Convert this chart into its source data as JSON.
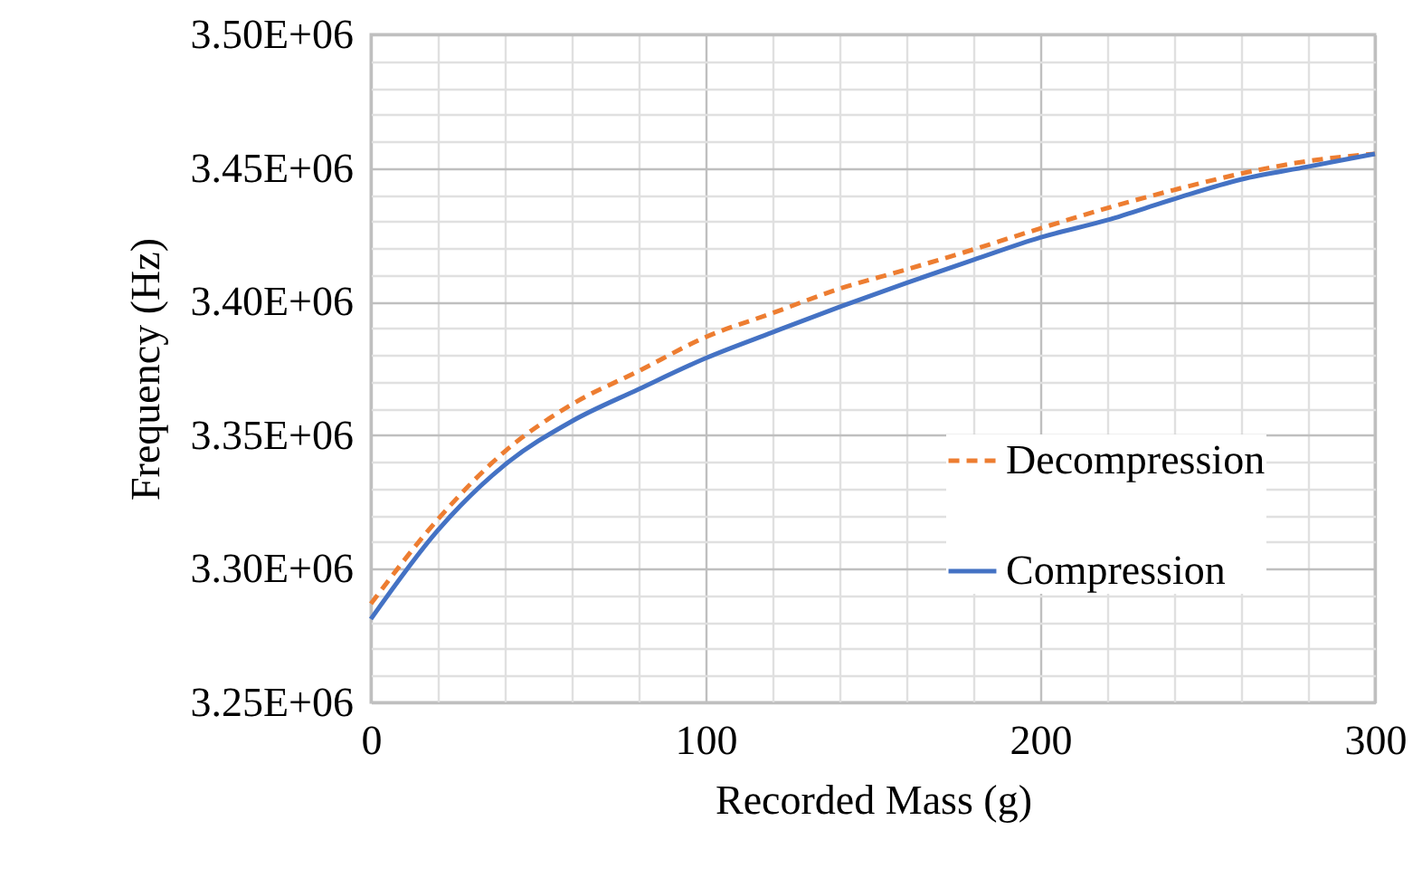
{
  "chart_data": {
    "type": "line",
    "xlabel": "Recorded Mass (g)",
    "ylabel": "Frequency (Hz)",
    "x": [
      0,
      20,
      40,
      60,
      80,
      100,
      120,
      140,
      160,
      180,
      200,
      220,
      240,
      260,
      280,
      300
    ],
    "series": [
      {
        "name": "Decompression",
        "color": "#ed7d31",
        "line_style": "dashed",
        "values": [
          3286900,
          3318500,
          3343900,
          3361500,
          3374000,
          3386700,
          3395700,
          3404800,
          3412000,
          3419500,
          3427400,
          3435000,
          3441800,
          3447900,
          3452600,
          3455300
        ]
      },
      {
        "name": "Compression",
        "color": "#4472c4",
        "line_style": "solid",
        "values": [
          3281200,
          3314400,
          3338900,
          3355200,
          3367200,
          3378800,
          3388500,
          3398000,
          3407000,
          3415600,
          3424000,
          3430500,
          3438400,
          3445700,
          3450500,
          3455300
        ]
      }
    ],
    "xlim": [
      0,
      300
    ],
    "xticks": [
      0,
      {
        "value": 20,
        "label": null
      },
      {
        "value": 40,
        "label": null
      },
      {
        "value": 60,
        "label": null
      },
      {
        "value": 80,
        "label": null
      },
      100,
      {
        "value": 120,
        "label": null
      },
      {
        "value": 140,
        "label": null
      },
      {
        "value": 160,
        "label": null
      },
      {
        "value": 180,
        "label": null
      },
      200,
      {
        "value": 220,
        "label": null
      },
      {
        "value": 240,
        "label": null
      },
      {
        "value": 260,
        "label": null
      },
      {
        "value": 280,
        "label": null
      },
      300
    ],
    "ylim": [
      3250000,
      3500000
    ],
    "yticks": [
      {
        "value": 3250000,
        "label": "3.25E+06"
      },
      {
        "value": 3260000,
        "label": null
      },
      {
        "value": 3270000,
        "label": null
      },
      {
        "value": 3280000,
        "label": null
      },
      {
        "value": 3290000,
        "label": null
      },
      {
        "value": 3300000,
        "label": "3.30E+06"
      },
      {
        "value": 3310000,
        "label": null
      },
      {
        "value": 3320000,
        "label": null
      },
      {
        "value": 3330000,
        "label": null
      },
      {
        "value": 3340000,
        "label": null
      },
      {
        "value": 3350000,
        "label": "3.35E+06"
      },
      {
        "value": 3360000,
        "label": null
      },
      {
        "value": 3370000,
        "label": null
      },
      {
        "value": 3380000,
        "label": null
      },
      {
        "value": 3390000,
        "label": null
      },
      {
        "value": 3400000,
        "label": "3.40E+06"
      },
      {
        "value": 3410000,
        "label": null
      },
      {
        "value": 3420000,
        "label": null
      },
      {
        "value": 3430000,
        "label": null
      },
      {
        "value": 3440000,
        "label": null
      },
      {
        "value": 3450000,
        "label": "3.45E+06"
      },
      {
        "value": 3460000,
        "label": null
      },
      {
        "value": 3470000,
        "label": null
      },
      {
        "value": 3480000,
        "label": null
      },
      {
        "value": 3490000,
        "label": null
      },
      {
        "value": 3500000,
        "label": "3.50E+06"
      }
    ],
    "grid": true,
    "legend": "bottom right"
  }
}
